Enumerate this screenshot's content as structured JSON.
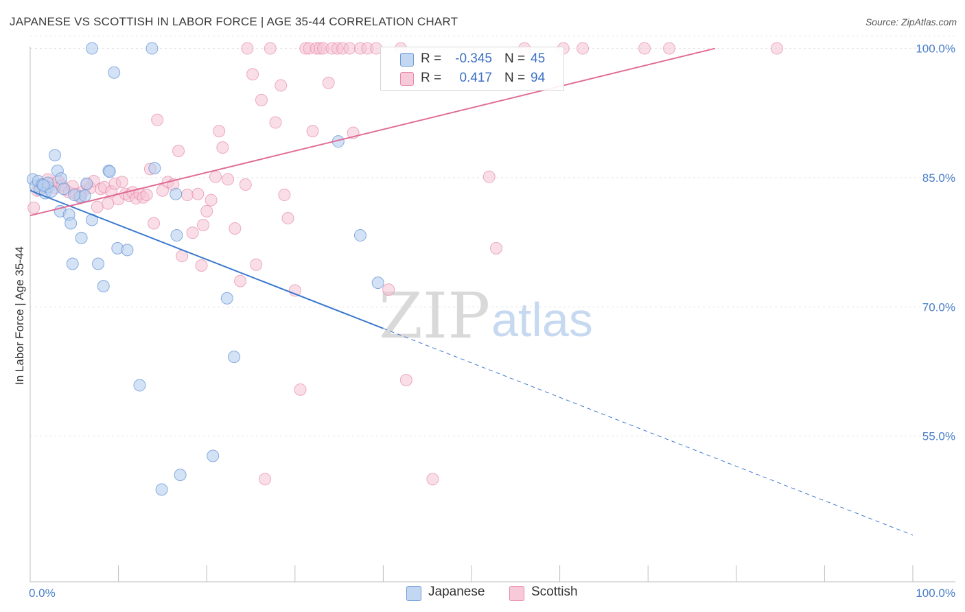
{
  "header": {
    "title": "JAPANESE VS SCOTTISH IN LABOR FORCE | AGE 35-44 CORRELATION CHART",
    "source": "Source: ZipAtlas.com"
  },
  "watermark": {
    "zip": "ZIP",
    "atlas": "atlas"
  },
  "legend": {
    "r_label": "R =",
    "n_label": "N =",
    "rows": [
      {
        "name": "Japanese",
        "r": "-0.345",
        "n": "45",
        "fill": "#c3d6f2",
        "stroke": "#6d9ad8"
      },
      {
        "name": "Scottish",
        "r": "0.417",
        "n": "94",
        "fill": "#f8c9d8",
        "stroke": "#e68aa8"
      }
    ]
  },
  "bottom_legend": {
    "japanese": "Japanese",
    "scottish": "Scottish"
  },
  "chart_data": {
    "type": "scatter",
    "title": "JAPANESE VS SCOTTISH IN LABOR FORCE | AGE 35-44 CORRELATION CHART",
    "xlabel": "",
    "ylabel": "In Labor Force | Age 35-44",
    "xlim": [
      0,
      100
    ],
    "ylim": [
      40,
      101
    ],
    "x_tick_labels": [
      "0.0%",
      "100.0%"
    ],
    "y_ticks": [
      {
        "value": 100,
        "label": "100.0%"
      },
      {
        "value": 85,
        "label": "85.0%"
      },
      {
        "value": 70,
        "label": "70.0%"
      },
      {
        "value": 55,
        "label": "55.0%"
      }
    ],
    "grid": true,
    "legend_position": "top-center",
    "colors": {
      "japanese_fill": "#b7cfef",
      "japanese_stroke": "#6d9ad8",
      "japanese_line": "#3a78cf",
      "scottish_fill": "#f6c2d3",
      "scottish_stroke": "#e68aa8",
      "scottish_line": "#e06c93"
    },
    "series": [
      {
        "name": "Japanese",
        "r": -0.345,
        "n": 45,
        "trend": {
          "x0": 0,
          "y0": 83.5,
          "x1": 100,
          "y1": 43.5,
          "solid_until_x": 40
        },
        "points": [
          [
            0.3,
            84.8
          ],
          [
            0.6,
            84.0
          ],
          [
            0.9,
            84.6
          ],
          [
            1.1,
            83.6
          ],
          [
            1.4,
            84.2
          ],
          [
            1.7,
            83.2
          ],
          [
            2.0,
            83.9
          ],
          [
            2.4,
            83.4
          ],
          [
            2.8,
            87.6
          ],
          [
            3.1,
            85.8
          ],
          [
            3.5,
            84.9
          ],
          [
            3.8,
            83.7
          ],
          [
            3.4,
            81.1
          ],
          [
            4.4,
            80.7
          ],
          [
            4.6,
            79.7
          ],
          [
            4.8,
            75.0
          ],
          [
            5.7,
            82.8
          ],
          [
            5.8,
            78.0
          ],
          [
            6.2,
            82.9
          ],
          [
            6.4,
            84.3
          ],
          [
            7.0,
            80.1
          ],
          [
            7.0,
            100.0
          ],
          [
            7.7,
            75.0
          ],
          [
            8.3,
            72.4
          ],
          [
            8.9,
            85.8
          ],
          [
            9.0,
            85.7
          ],
          [
            9.5,
            97.2
          ],
          [
            9.9,
            76.8
          ],
          [
            11.0,
            76.6
          ],
          [
            12.4,
            60.9
          ],
          [
            13.8,
            100.0
          ],
          [
            14.1,
            86.1
          ],
          [
            14.9,
            48.8
          ],
          [
            16.5,
            83.1
          ],
          [
            16.6,
            78.3
          ],
          [
            17.0,
            50.5
          ],
          [
            20.7,
            52.7
          ],
          [
            22.3,
            71.0
          ],
          [
            23.1,
            64.2
          ],
          [
            34.9,
            89.2
          ],
          [
            37.4,
            78.3
          ],
          [
            39.4,
            72.8
          ],
          [
            2.0,
            84.4
          ],
          [
            5.0,
            83.0
          ],
          [
            1.5,
            84.1
          ]
        ]
      },
      {
        "name": "Scottish",
        "r": 0.417,
        "n": 94,
        "trend": {
          "x0": 0,
          "y0": 80.6,
          "x1": 77.6,
          "y1": 100.0
        },
        "points": [
          [
            0.4,
            81.5
          ],
          [
            0.8,
            83.5
          ],
          [
            1.2,
            84.2
          ],
          [
            1.6,
            83.9
          ],
          [
            2.0,
            84.8
          ],
          [
            2.4,
            84.3
          ],
          [
            2.8,
            83.8
          ],
          [
            3.2,
            84.6
          ],
          [
            3.6,
            84.1
          ],
          [
            4.0,
            83.6
          ],
          [
            4.4,
            83.3
          ],
          [
            4.8,
            84.0
          ],
          [
            5.2,
            83.1
          ],
          [
            5.6,
            82.7
          ],
          [
            6.0,
            83.4
          ],
          [
            6.4,
            84.2
          ],
          [
            6.8,
            83.8
          ],
          [
            7.2,
            84.6
          ],
          [
            7.6,
            81.6
          ],
          [
            8.0,
            83.7
          ],
          [
            8.4,
            83.9
          ],
          [
            8.8,
            82.0
          ],
          [
            9.2,
            83.4
          ],
          [
            9.6,
            84.3
          ],
          [
            10.0,
            82.5
          ],
          [
            10.4,
            84.5
          ],
          [
            10.8,
            83.1
          ],
          [
            11.2,
            82.9
          ],
          [
            11.6,
            83.3
          ],
          [
            12.0,
            82.6
          ],
          [
            12.4,
            83.1
          ],
          [
            12.8,
            82.7
          ],
          [
            13.2,
            83.0
          ],
          [
            13.6,
            86.0
          ],
          [
            14.0,
            79.7
          ],
          [
            14.4,
            91.7
          ],
          [
            15.0,
            83.5
          ],
          [
            15.6,
            84.5
          ],
          [
            16.2,
            84.2
          ],
          [
            16.8,
            88.1
          ],
          [
            17.2,
            75.9
          ],
          [
            17.8,
            83.0
          ],
          [
            18.4,
            78.6
          ],
          [
            19.0,
            83.1
          ],
          [
            19.4,
            74.8
          ],
          [
            19.6,
            79.5
          ],
          [
            20.0,
            81.1
          ],
          [
            20.5,
            82.4
          ],
          [
            21.0,
            85.1
          ],
          [
            21.4,
            90.4
          ],
          [
            21.8,
            88.5
          ],
          [
            22.4,
            84.8
          ],
          [
            23.2,
            79.1
          ],
          [
            23.8,
            73.0
          ],
          [
            24.4,
            84.2
          ],
          [
            24.6,
            100.0
          ],
          [
            25.2,
            97.0
          ],
          [
            25.6,
            74.9
          ],
          [
            26.2,
            94.0
          ],
          [
            27.2,
            100.0
          ],
          [
            27.8,
            91.4
          ],
          [
            28.4,
            95.7
          ],
          [
            28.8,
            83.0
          ],
          [
            29.2,
            80.3
          ],
          [
            30.0,
            71.9
          ],
          [
            30.6,
            60.4
          ],
          [
            31.2,
            100.0
          ],
          [
            31.6,
            100.0
          ],
          [
            32.0,
            90.4
          ],
          [
            32.4,
            100.0
          ],
          [
            32.8,
            100.0
          ],
          [
            33.2,
            100.0
          ],
          [
            33.8,
            96.0
          ],
          [
            34.2,
            100.0
          ],
          [
            34.8,
            100.0
          ],
          [
            35.4,
            100.0
          ],
          [
            36.2,
            100.0
          ],
          [
            36.6,
            90.2
          ],
          [
            37.4,
            100.0
          ],
          [
            38.2,
            100.0
          ],
          [
            39.2,
            100.0
          ],
          [
            40.6,
            72.0
          ],
          [
            42.6,
            61.5
          ],
          [
            45.6,
            50.0
          ],
          [
            52.0,
            85.1
          ],
          [
            52.8,
            76.8
          ],
          [
            60.4,
            100.0
          ],
          [
            62.6,
            100.0
          ],
          [
            69.6,
            100.0
          ],
          [
            72.4,
            100.0
          ],
          [
            84.6,
            100.0
          ],
          [
            26.6,
            50.0
          ],
          [
            42.0,
            100.0
          ],
          [
            56.0,
            100.0
          ]
        ]
      }
    ]
  }
}
